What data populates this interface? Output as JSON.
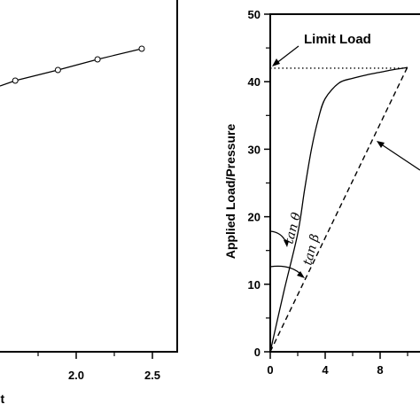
{
  "chart_data": [
    {
      "type": "line",
      "xlabel": "nt",
      "x_ticks": [
        "2.0",
        "2.5"
      ],
      "xlim": [
        1.5,
        2.7
      ],
      "series": [
        {
          "marker": "open-circle",
          "color": "#000000",
          "x": [
            1.6,
            1.88,
            2.14,
            2.43
          ],
          "y": [
            0.83,
            0.85,
            0.87,
            0.89
          ]
        }
      ]
    },
    {
      "type": "line",
      "ylabel": "Applied Load/Pressure",
      "xlim": [
        0,
        10
      ],
      "ylim": [
        0,
        50
      ],
      "x_ticks": [
        "0",
        "4",
        "8"
      ],
      "y_ticks": [
        "0",
        "10",
        "20",
        "30",
        "40",
        "50"
      ],
      "series": [
        {
          "style": "solid",
          "color": "#000000",
          "x": [
            0,
            1,
            2,
            2.5,
            3,
            3.5,
            4,
            5,
            6,
            7,
            8,
            9,
            10
          ],
          "y": [
            0,
            9,
            17.5,
            24,
            30,
            34.5,
            37.5,
            39.8,
            40.5,
            41,
            41.4,
            41.8,
            42.1
          ]
        },
        {
          "style": "dashed",
          "color": "#000000",
          "x": [
            0,
            10
          ],
          "y": [
            0,
            42.2
          ]
        },
        {
          "style": "dotted",
          "color": "#000000",
          "x": [
            0,
            10
          ],
          "y": [
            42,
            42
          ]
        }
      ],
      "annotations": {
        "limit_load": "Limit Load",
        "tan_theta": "tan θ",
        "tan_beta": "tan β"
      }
    }
  ]
}
